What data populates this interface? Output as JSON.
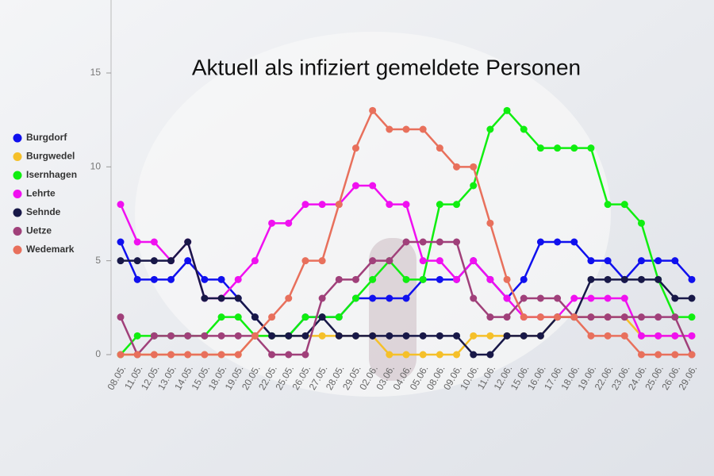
{
  "chart_data": {
    "type": "line",
    "title": "Aktuell als infiziert gemeldete Personen",
    "categories": [
      "08.05.",
      "11.05.",
      "12.05.",
      "13.05.",
      "14.05.",
      "15.05.",
      "18.05.",
      "19.05.",
      "20.05.",
      "22.05.",
      "25.05.",
      "26.05.",
      "27.05.",
      "28.05.",
      "29.05.",
      "02.06.",
      "03.06.",
      "04.06.",
      "05.06.",
      "08.06.",
      "09.06.",
      "10.06.",
      "11.06.",
      "12.06.",
      "15.06.",
      "16.06.",
      "17.06.",
      "18.06.",
      "19.06.",
      "22.06.",
      "23.06.",
      "24.06.",
      "25.06.",
      "26.06.",
      "29.06."
    ],
    "series": [
      {
        "name": "Burgdorf",
        "color": "#1010ee",
        "values": [
          6,
          4,
          4,
          4,
          5,
          4,
          4,
          3,
          2,
          1,
          1,
          2,
          2,
          2,
          3,
          3,
          3,
          3,
          4,
          4,
          4,
          5,
          4,
          3,
          4,
          6,
          6,
          6,
          5,
          5,
          4,
          5,
          5,
          5,
          4
        ]
      },
      {
        "name": "Burgwedel",
        "color": "#f5c02a",
        "values": [
          0,
          0,
          0,
          0,
          0,
          0,
          0,
          0,
          1,
          1,
          1,
          1,
          1,
          1,
          1,
          1,
          0,
          0,
          0,
          0,
          0,
          1,
          1,
          1,
          1,
          1,
          2,
          2,
          2,
          2,
          2,
          1,
          1,
          1,
          1
        ]
      },
      {
        "name": "Isernhagen",
        "color": "#10ee10",
        "values": [
          0,
          1,
          1,
          1,
          1,
          1,
          2,
          2,
          1,
          1,
          1,
          2,
          2,
          2,
          3,
          4,
          5,
          4,
          4,
          8,
          8,
          9,
          12,
          13,
          12,
          11,
          11,
          11,
          11,
          8,
          8,
          7,
          4,
          2,
          2
        ]
      },
      {
        "name": "Lehrte",
        "color": "#f010f0",
        "values": [
          8,
          6,
          6,
          5,
          6,
          3,
          3,
          4,
          5,
          7,
          7,
          8,
          8,
          8,
          9,
          9,
          8,
          8,
          5,
          5,
          4,
          5,
          4,
          3,
          2,
          2,
          2,
          3,
          3,
          3,
          3,
          1,
          1,
          1,
          1
        ]
      },
      {
        "name": "Sehnde",
        "color": "#181848",
        "values": [
          5,
          5,
          5,
          5,
          6,
          3,
          3,
          3,
          2,
          1,
          1,
          1,
          2,
          1,
          1,
          1,
          1,
          1,
          1,
          1,
          1,
          0,
          0,
          1,
          1,
          1,
          2,
          2,
          4,
          4,
          4,
          4,
          4,
          3,
          3
        ]
      },
      {
        "name": "Uetze",
        "color": "#a0407a",
        "values": [
          2,
          0,
          1,
          1,
          1,
          1,
          1,
          1,
          1,
          0,
          0,
          0,
          3,
          4,
          4,
          5,
          5,
          6,
          6,
          6,
          6,
          3,
          2,
          2,
          3,
          3,
          3,
          2,
          2,
          2,
          2,
          2,
          2,
          2,
          0
        ]
      },
      {
        "name": "Wedemark",
        "color": "#e8705c",
        "values": [
          0,
          0,
          0,
          0,
          0,
          0,
          0,
          0,
          1,
          2,
          3,
          5,
          5,
          8,
          11,
          13,
          12,
          12,
          12,
          11,
          10,
          10,
          7,
          4,
          2,
          2,
          2,
          2,
          1,
          1,
          1,
          0,
          0,
          0,
          0
        ]
      }
    ],
    "ylim": [
      0,
      18
    ],
    "yticks": [
      0,
      5,
      10,
      15
    ],
    "legend": "left"
  }
}
